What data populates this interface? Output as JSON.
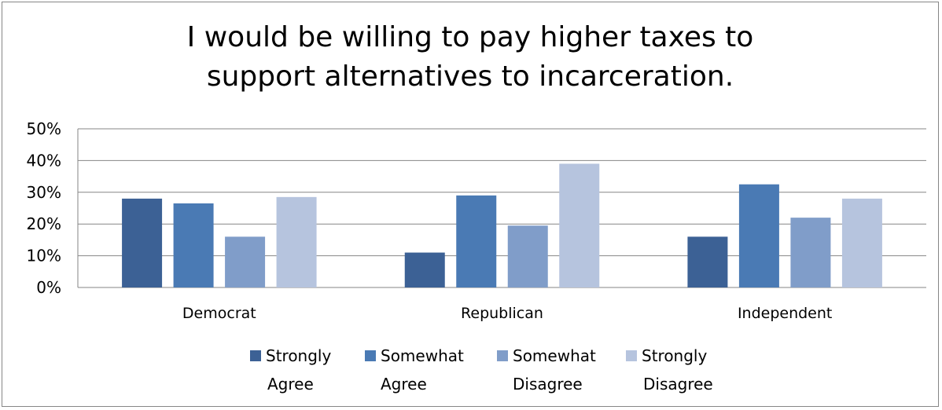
{
  "chart_data": {
    "type": "bar",
    "title": "I would be willing to pay higher taxes to support alternatives to incarceration.",
    "categories": [
      "Democrat",
      "Republican",
      "Independent"
    ],
    "series": [
      {
        "name": "Strongly Agree",
        "name_lines": [
          "Strongly",
          "Agree"
        ],
        "color": "#3C6195",
        "values": [
          28,
          11,
          16
        ]
      },
      {
        "name": "Somewhat Agree",
        "name_lines": [
          "Somewhat",
          "Agree"
        ],
        "color": "#4A7AB4",
        "values": [
          26.5,
          29,
          32.5
        ]
      },
      {
        "name": "Somewhat Disagree",
        "name_lines": [
          "Somewhat",
          "Disagree"
        ],
        "color": "#809DC9",
        "values": [
          16,
          19.5,
          22
        ]
      },
      {
        "name": "Strongly Disagree",
        "name_lines": [
          "Strongly",
          "Disagree"
        ],
        "color": "#B6C4DE",
        "values": [
          28.5,
          39,
          28
        ]
      }
    ],
    "ylim": [
      0,
      50
    ],
    "yticks": [
      "0%",
      "10%",
      "20%",
      "30%",
      "40%",
      "50%"
    ],
    "grid": true,
    "legend": "bottom"
  }
}
